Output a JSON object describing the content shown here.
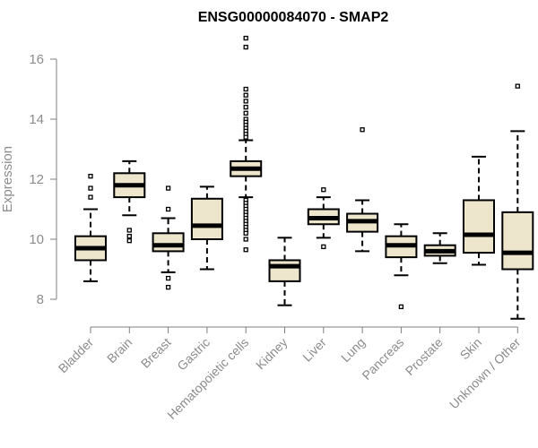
{
  "chart_data": {
    "type": "boxplot",
    "title": "ENSG00000084070 - SMAP2",
    "xlabel": "",
    "ylabel": "Expression",
    "ylim": [
      7.2,
      16.8
    ],
    "yticks": [
      8,
      10,
      12,
      14,
      16
    ],
    "colors": {
      "box_fill": "#ede6cc",
      "box_stroke": "#000000",
      "median": "#000000",
      "axis": "#7f7f7f",
      "tick_label": "#8c8c8c"
    },
    "categories": [
      "Bladder",
      "Brain",
      "Breast",
      "Gastric",
      "Hematopoietic cells",
      "Kidney",
      "Liver",
      "Lung",
      "Pancreas",
      "Prostate",
      "Skin",
      "Unknown / Other"
    ],
    "boxes": [
      {
        "name": "Bladder",
        "whisker_low": 8.6,
        "q1": 9.3,
        "median": 9.7,
        "q3": 10.1,
        "whisker_high": 11.0,
        "outliers": [
          11.4,
          11.7,
          12.1
        ]
      },
      {
        "name": "Brain",
        "whisker_low": 10.8,
        "q1": 11.4,
        "median": 11.8,
        "q3": 12.2,
        "whisker_high": 12.6,
        "outliers": [
          10.3,
          10.1,
          9.95
        ]
      },
      {
        "name": "Breast",
        "whisker_low": 8.9,
        "q1": 9.6,
        "median": 9.8,
        "q3": 10.2,
        "whisker_high": 10.7,
        "outliers": [
          11.7,
          11.0,
          8.7,
          8.4
        ]
      },
      {
        "name": "Gastric",
        "whisker_low": 9.0,
        "q1": 10.0,
        "median": 10.45,
        "q3": 11.35,
        "whisker_high": 11.75,
        "outliers": []
      },
      {
        "name": "Hematopoietic cells",
        "whisker_low": 11.4,
        "q1": 12.1,
        "median": 12.35,
        "q3": 12.6,
        "whisker_high": 13.3,
        "outliers": [
          16.7,
          16.4,
          15.0,
          14.8,
          14.6,
          14.4,
          14.2,
          14.0,
          13.9,
          13.8,
          13.7,
          13.6,
          13.5,
          13.4,
          11.3,
          11.2,
          11.1,
          11.0,
          10.9,
          10.8,
          10.7,
          10.6,
          10.5,
          10.4,
          10.3,
          10.2,
          10.0,
          9.65
        ]
      },
      {
        "name": "Kidney",
        "whisker_low": 7.8,
        "q1": 8.6,
        "median": 9.1,
        "q3": 9.3,
        "whisker_high": 10.05,
        "outliers": []
      },
      {
        "name": "Liver",
        "whisker_low": 10.05,
        "q1": 10.5,
        "median": 10.7,
        "q3": 11.0,
        "whisker_high": 11.4,
        "outliers": [
          11.65,
          9.75
        ]
      },
      {
        "name": "Lung",
        "whisker_low": 9.6,
        "q1": 10.25,
        "median": 10.6,
        "q3": 10.85,
        "whisker_high": 11.3,
        "outliers": [
          13.65
        ]
      },
      {
        "name": "Pancreas",
        "whisker_low": 8.8,
        "q1": 9.4,
        "median": 9.8,
        "q3": 10.1,
        "whisker_high": 10.5,
        "outliers": [
          7.75
        ]
      },
      {
        "name": "Prostate",
        "whisker_low": 9.2,
        "q1": 9.45,
        "median": 9.6,
        "q3": 9.8,
        "whisker_high": 10.2,
        "outliers": []
      },
      {
        "name": "Skin",
        "whisker_low": 9.15,
        "q1": 9.55,
        "median": 10.15,
        "q3": 11.3,
        "whisker_high": 12.75,
        "outliers": []
      },
      {
        "name": "Unknown / Other",
        "whisker_low": 7.35,
        "q1": 9.0,
        "median": 9.55,
        "q3": 10.9,
        "whisker_high": 13.6,
        "outliers": [
          15.1
        ]
      }
    ]
  }
}
